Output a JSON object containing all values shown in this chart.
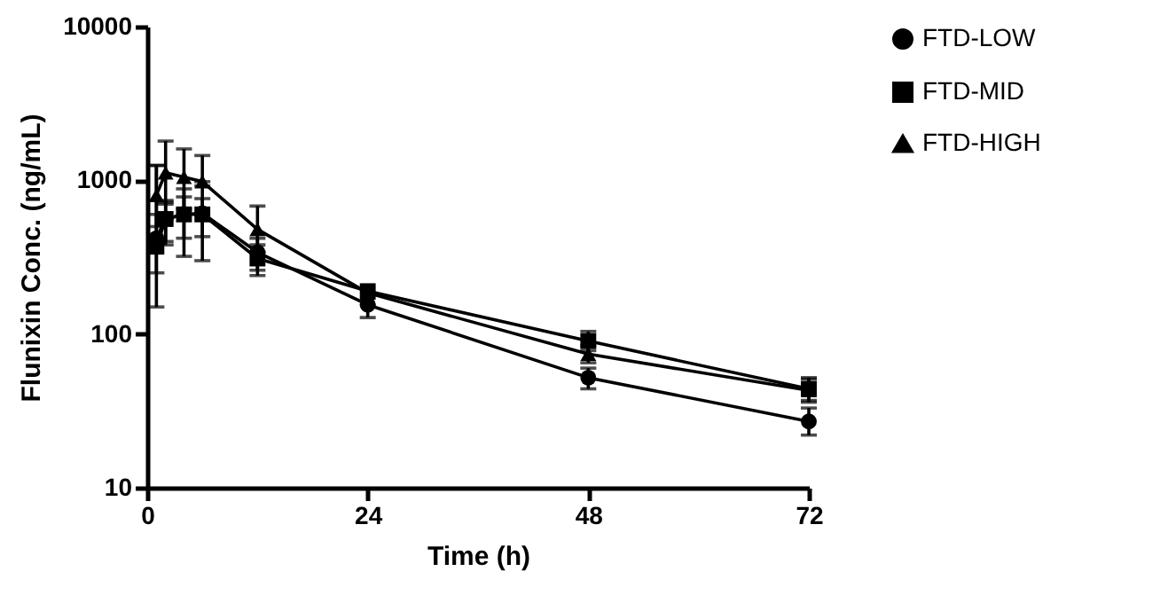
{
  "chart_data": {
    "type": "line",
    "xlabel": "Time (h)",
    "ylabel": "Flunixin Conc. (ng/mL)",
    "x": [
      1,
      2,
      4,
      6,
      12,
      24,
      48,
      72
    ],
    "series": [
      {
        "name": "FTD-LOW",
        "color": "#000000",
        "marker": "circle",
        "values": [
          420,
          560,
          600,
          610,
          340,
          155,
          52,
          27
        ],
        "errors": [
          [
            250,
            600
          ],
          [
            380,
            740
          ],
          [
            320,
            880
          ],
          [
            300,
            920
          ],
          [
            260,
            420
          ],
          [
            128,
            155
          ],
          [
            44,
            60
          ],
          [
            22,
            33
          ]
        ]
      },
      {
        "name": "FTD-MID",
        "color": "#000000",
        "marker": "square",
        "values": [
          370,
          560,
          600,
          600,
          310,
          190,
          90,
          44
        ],
        "errors": [
          [
            150,
            1250
          ],
          [
            400,
            720
          ],
          [
            420,
            780
          ],
          [
            430,
            760
          ],
          [
            240,
            380
          ],
          null,
          [
            78,
            104
          ],
          [
            37,
            52
          ]
        ]
      },
      {
        "name": "FTD-HIGH",
        "color": "#000000",
        "marker": "triangle",
        "values": [
          800,
          1120,
          1050,
          980,
          480,
          185,
          74,
          43
        ],
        "errors": [
          [
            500,
            1250
          ],
          [
            700,
            1800
          ],
          [
            650,
            1600
          ],
          [
            980,
            1450
          ],
          [
            340,
            680
          ],
          null,
          [
            65,
            84
          ],
          [
            36,
            51
          ]
        ]
      }
    ],
    "xlim": [
      0,
      72
    ],
    "xticks": [
      0,
      24,
      48,
      72
    ],
    "ylim": [
      10,
      10000
    ],
    "yticks": [
      10,
      100,
      1000,
      10000
    ],
    "log": "y",
    "grid": false,
    "legend": "top right",
    "line_style": "solid"
  }
}
